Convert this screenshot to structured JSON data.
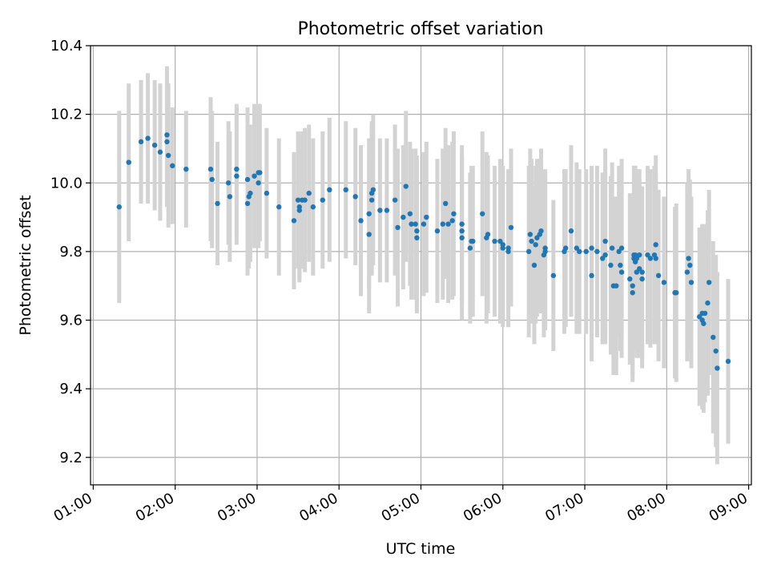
{
  "chart_data": {
    "type": "scatter",
    "title": "Photometric offset variation",
    "xlabel": "UTC time",
    "ylabel": "Photometric offset",
    "x_unit": "UTC clock time",
    "xlim": [
      "00:58",
      "09:02"
    ],
    "ylim": [
      9.12,
      10.4
    ],
    "x_ticks": [
      "01:00",
      "02:00",
      "03:00",
      "04:00",
      "05:00",
      "06:00",
      "07:00",
      "08:00",
      "09:00"
    ],
    "y_ticks": [
      "9.2",
      "9.4",
      "9.6",
      "9.8",
      "10.0",
      "10.2",
      "10.4"
    ],
    "grid": true,
    "legend": "none",
    "colors": {
      "point": "#1f77b4",
      "errorbar": "#d3d3d3",
      "grid": "#b0b0b0"
    },
    "series": [
      {
        "x": [
          "01:19",
          "01:26",
          "01:35",
          "01:40",
          "01:45",
          "01:49",
          "01:54",
          "01:54",
          "01:55",
          "01:58",
          "02:08",
          "02:26",
          "02:27",
          "02:31",
          "02:39",
          "02:40",
          "02:45",
          "02:45",
          "02:53",
          "02:53",
          "02:54",
          "02:55",
          "02:58",
          "03:01",
          "03:01",
          "03:02",
          "03:07",
          "03:16",
          "03:27",
          "03:30",
          "03:31",
          "03:31",
          "03:33",
          "03:35",
          "03:38",
          "03:41",
          "03:48",
          "03:53",
          "04:05",
          "04:12",
          "04:16",
          "04:22",
          "04:22",
          "04:24",
          "04:24",
          "04:25",
          "04:30",
          "04:35",
          "04:41",
          "04:43",
          "04:47",
          "04:49",
          "04:52",
          "04:53",
          "04:56",
          "04:57",
          "04:57",
          "05:02",
          "05:04",
          "05:12",
          "05:16",
          "05:18",
          "05:20",
          "05:23",
          "05:24",
          "05:30",
          "05:30",
          "05:30",
          "05:36",
          "05:37",
          "05:38",
          "05:45",
          "05:48",
          "05:49",
          "05:54",
          "05:58",
          "06:00",
          "06:00",
          "06:04",
          "06:04",
          "06:06",
          "06:19",
          "06:20",
          "06:21",
          "06:23",
          "06:24",
          "06:25",
          "06:27",
          "06:28",
          "06:30",
          "06:31",
          "06:31",
          "06:37",
          "06:45",
          "06:46",
          "06:50",
          "06:54",
          "06:56",
          "07:01",
          "07:05",
          "07:05",
          "07:09",
          "07:13",
          "07:15",
          "07:15",
          "07:19",
          "07:20",
          "07:21",
          "07:23",
          "07:25",
          "07:26",
          "07:27",
          "07:27",
          "07:33",
          "07:35",
          "07:35",
          "07:36",
          "07:36",
          "07:37",
          "07:37",
          "07:38",
          "07:38",
          "07:40",
          "07:40",
          "07:42",
          "07:42",
          "07:46",
          "07:48",
          "07:51",
          "07:52",
          "07:52",
          "07:54",
          "07:58",
          "08:06",
          "08:07",
          "08:15",
          "08:16",
          "08:17",
          "08:18",
          "08:24",
          "08:26",
          "08:26",
          "08:27",
          "08:28",
          "08:30",
          "08:31",
          "08:34",
          "08:36",
          "08:37",
          "08:45"
        ],
        "y": [
          9.93,
          10.06,
          10.12,
          10.13,
          10.11,
          10.09,
          10.14,
          10.12,
          10.08,
          10.05,
          10.04,
          10.04,
          10.01,
          9.94,
          10.0,
          9.96,
          10.04,
          10.02,
          10.01,
          9.94,
          9.96,
          9.97,
          10.02,
          10.03,
          10.0,
          10.03,
          9.97,
          9.93,
          9.89,
          9.95,
          9.92,
          9.93,
          9.95,
          9.95,
          9.97,
          9.93,
          9.95,
          9.98,
          9.98,
          9.96,
          9.89,
          9.85,
          9.91,
          9.95,
          9.97,
          9.98,
          9.92,
          9.92,
          9.95,
          9.87,
          9.9,
          9.99,
          9.91,
          9.88,
          9.88,
          9.86,
          9.84,
          9.88,
          9.9,
          9.86,
          9.88,
          9.94,
          9.88,
          9.89,
          9.91,
          9.86,
          9.88,
          9.84,
          9.81,
          9.83,
          9.83,
          9.91,
          9.84,
          9.85,
          9.83,
          9.83,
          9.82,
          9.81,
          9.8,
          9.81,
          9.87,
          9.8,
          9.85,
          9.83,
          9.76,
          9.82,
          9.84,
          9.85,
          9.86,
          9.79,
          9.81,
          9.8,
          9.73,
          9.8,
          9.81,
          9.86,
          9.81,
          9.8,
          9.8,
          9.73,
          9.81,
          9.8,
          9.78,
          9.79,
          9.83,
          9.76,
          9.81,
          9.7,
          9.7,
          9.8,
          9.76,
          9.74,
          9.81,
          9.72,
          9.7,
          9.68,
          9.79,
          9.78,
          9.77,
          9.79,
          9.74,
          9.78,
          9.79,
          9.75,
          9.74,
          9.72,
          9.79,
          9.78,
          9.79,
          9.78,
          9.82,
          9.73,
          9.71,
          9.68,
          9.68,
          9.74,
          9.78,
          9.76,
          9.71,
          9.61,
          9.6,
          9.62,
          9.59,
          9.62,
          9.65,
          9.71,
          9.55,
          9.51,
          9.46,
          9.48
        ],
        "yerr": [
          0.28,
          0.23,
          0.18,
          0.19,
          0.19,
          0.2,
          0.2,
          0.19,
          0.21,
          0.17,
          0.17,
          0.21,
          0.2,
          0.18,
          0.18,
          0.19,
          0.19,
          0.2,
          0.21,
          0.21,
          0.21,
          0.2,
          0.21,
          0.2,
          0.19,
          0.2,
          0.19,
          0.2,
          0.2,
          0.2,
          0.21,
          0.21,
          0.2,
          0.21,
          0.2,
          0.2,
          0.2,
          0.21,
          0.2,
          0.2,
          0.22,
          0.23,
          0.22,
          0.22,
          0.21,
          0.22,
          0.21,
          0.21,
          0.22,
          0.23,
          0.21,
          0.22,
          0.21,
          0.22,
          0.22,
          0.22,
          0.22,
          0.21,
          0.22,
          0.21,
          0.22,
          0.22,
          0.23,
          0.23,
          0.24,
          0.22,
          0.23,
          0.24,
          0.22,
          0.22,
          0.22,
          0.24,
          0.25,
          0.23,
          0.22,
          0.24,
          0.23,
          0.23,
          0.22,
          0.23,
          0.23,
          0.25,
          0.25,
          0.24,
          0.23,
          0.23,
          0.23,
          0.22,
          0.24,
          0.24,
          0.23,
          0.23,
          0.22,
          0.24,
          0.23,
          0.25,
          0.25,
          0.24,
          0.24,
          0.25,
          0.24,
          0.25,
          0.25,
          0.26,
          0.27,
          0.26,
          0.25,
          0.26,
          0.26,
          0.25,
          0.25,
          0.25,
          0.26,
          0.25,
          0.26,
          0.26,
          0.26,
          0.27,
          0.26,
          0.26,
          0.25,
          0.26,
          0.25,
          0.26,
          0.25,
          0.26,
          0.26,
          0.26,
          0.26,
          0.25,
          0.26,
          0.25,
          0.25,
          0.25,
          0.26,
          0.26,
          0.26,
          0.25,
          0.25,
          0.26,
          0.26,
          0.26,
          0.26,
          0.26,
          0.27,
          0.27,
          0.28,
          0.28,
          0.28,
          0.24
        ]
      }
    ]
  }
}
